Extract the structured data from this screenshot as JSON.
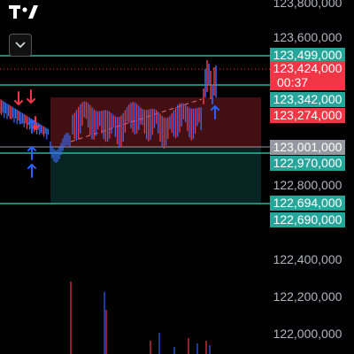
{
  "colors": {
    "background": "#000000",
    "teal": "#2bb39a",
    "red": "#f23645",
    "blue": "#2962ff",
    "gray_label": "#9598a1"
  },
  "axis": {
    "ticks": [
      "123,800,000",
      "123,600,000",
      "122,800,000",
      "122,400,000",
      "122,200,000",
      "122,000,000"
    ]
  },
  "price_labels": [
    {
      "text": "123,499,000",
      "color": "#26a69a"
    },
    {
      "text": "123,424,000",
      "color": "#f23645"
    },
    {
      "text": "123,342,000",
      "color": "#26a69a"
    },
    {
      "text": "123,274,000",
      "color": "#f23645"
    },
    {
      "text": "123,001,000",
      "color": "#9598a1"
    },
    {
      "text": "122,970,000",
      "color": "#26a69a"
    },
    {
      "text": "122,694,000",
      "color": "#26a69a"
    },
    {
      "text": "122,690,000",
      "color": "#26a69a"
    }
  ],
  "countdown": "00:37",
  "icons": {
    "logo": "tradingview-logo",
    "collapse": "chevron-down-icon"
  }
}
